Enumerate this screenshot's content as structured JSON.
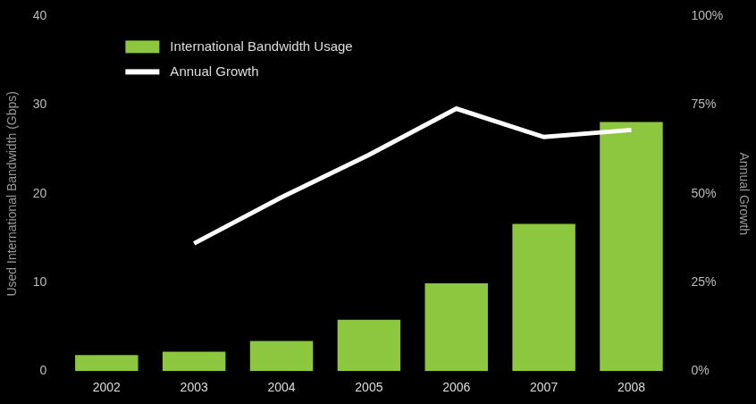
{
  "chart_data": {
    "type": "bar",
    "categories": [
      "2002",
      "2003",
      "2004",
      "2005",
      "2006",
      "2007",
      "2008"
    ],
    "series": [
      {
        "name": "International Bandwidth Usage",
        "type": "bar",
        "color": "#8dc63f",
        "values": [
          1.8,
          2.2,
          3.4,
          5.8,
          9.9,
          16.6,
          28.1
        ]
      },
      {
        "name": "Annual Growth",
        "type": "line",
        "color": "#ffffff",
        "axis": "y2",
        "marker": "none",
        "values": [
          null,
          36,
          49,
          61,
          74,
          66,
          68
        ]
      }
    ],
    "y_label": "Used International Bandwidth (Gbps)",
    "y2_label": "Annual Growth",
    "ylim": [
      0,
      40
    ],
    "yticks": [
      0,
      10,
      20,
      30,
      40
    ],
    "y2lim": [
      0,
      100
    ],
    "y2ticks": [
      {
        "value": 0,
        "label": "0%"
      },
      {
        "value": 25,
        "label": "25%"
      },
      {
        "value": 50,
        "label": "50%"
      },
      {
        "value": 75,
        "label": "75%"
      },
      {
        "value": 100,
        "label": "100%"
      }
    ],
    "grid": false,
    "legend": "upper left"
  }
}
